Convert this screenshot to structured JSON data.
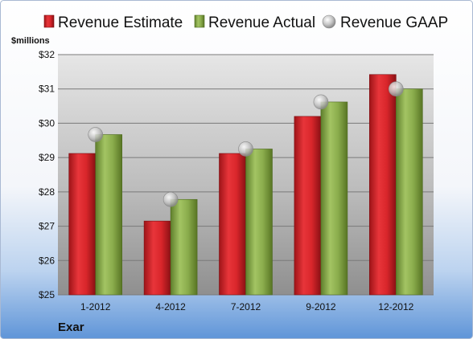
{
  "chart_data": {
    "type": "bar",
    "categories": [
      "1-2012",
      "4-2012",
      "7-2012",
      "9-2012",
      "12-2012"
    ],
    "series": [
      {
        "name": "Revenue Estimate",
        "values": [
          29.12,
          27.15,
          29.12,
          30.2,
          31.42
        ],
        "color": "#d9262b"
      },
      {
        "name": "Revenue Actual",
        "values": [
          29.67,
          27.78,
          29.25,
          30.62,
          31.0
        ],
        "color": "#8aac4c"
      }
    ],
    "markers": {
      "name": "Revenue GAAP",
      "values": [
        29.67,
        27.78,
        29.25,
        30.62,
        31.0
      ],
      "color": "#b8b8b8"
    },
    "ylabel": "$millions",
    "ylim": [
      25,
      32
    ],
    "yticks": [
      "$25",
      "$26",
      "$27",
      "$28",
      "$29",
      "$30",
      "$31",
      "$32"
    ],
    "grid": true,
    "legend_position": "top",
    "footer": "Exar"
  }
}
